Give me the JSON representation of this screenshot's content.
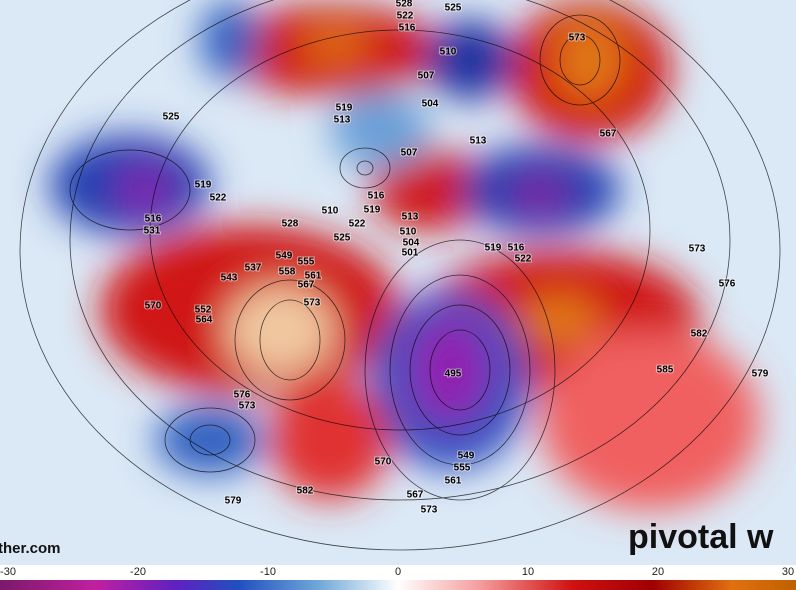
{
  "map": {
    "contour_labels": [
      "528",
      "525",
      "522",
      "516",
      "510",
      "507",
      "504",
      "573",
      "567",
      "519",
      "513",
      "525",
      "507",
      "513",
      "519",
      "522",
      "516",
      "519",
      "510",
      "522",
      "516",
      "531",
      "528",
      "525",
      "513",
      "510",
      "504",
      "501",
      "519",
      "516",
      "522",
      "573",
      "576",
      "543",
      "537",
      "549",
      "555",
      "558",
      "561",
      "567",
      "573",
      "570",
      "552",
      "564",
      "582",
      "585",
      "579",
      "495",
      "576",
      "573",
      "549",
      "555",
      "561",
      "570",
      "567",
      "573",
      "579",
      "582"
    ],
    "watermark_left": "ther.com",
    "watermark_right": "pivotal w",
    "colorbar_ticks": [
      -30,
      -20,
      -10,
      0,
      10,
      20,
      30
    ]
  }
}
